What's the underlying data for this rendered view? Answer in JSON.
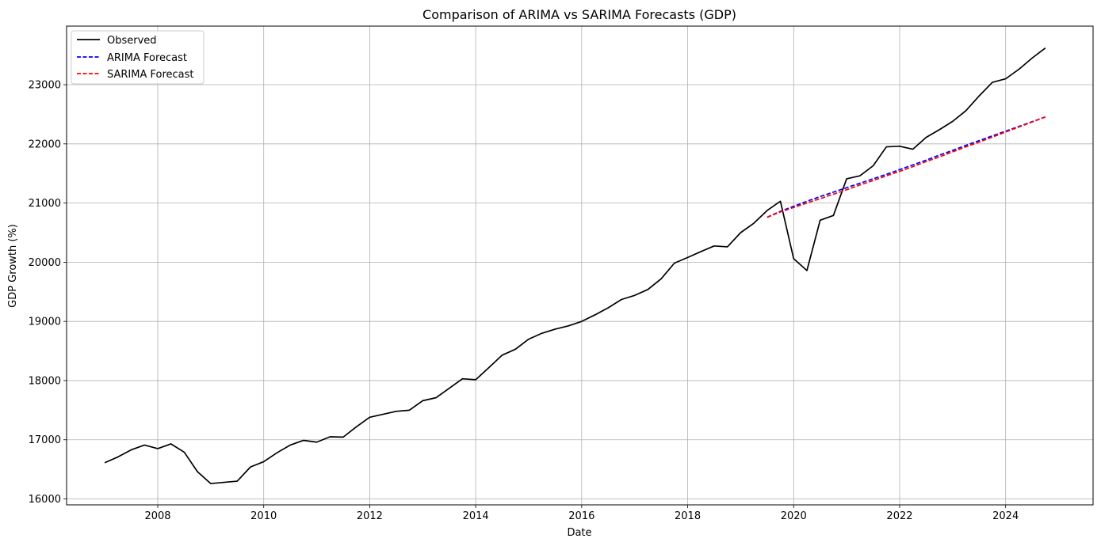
{
  "chart_data": {
    "type": "line",
    "title": "Comparison of ARIMA vs SARIMA Forecasts (GDP)",
    "xlabel": "Date",
    "ylabel": "GDP Growth (%)",
    "xlim": [
      2006.28,
      2025.65
    ],
    "ylim": [
      15900,
      23990
    ],
    "x_ticks": [
      2008,
      2010,
      2012,
      2014,
      2016,
      2018,
      2020,
      2022,
      2024
    ],
    "y_ticks": [
      16000,
      17000,
      18000,
      19000,
      20000,
      21000,
      22000,
      23000
    ],
    "grid": true,
    "legend_position": "top-left",
    "series": [
      {
        "name": "Observed",
        "color": "#000000",
        "style": "solid",
        "x": [
          2007.0,
          2007.25,
          2007.5,
          2007.75,
          2008.0,
          2008.25,
          2008.5,
          2008.75,
          2009.0,
          2009.25,
          2009.5,
          2009.75,
          2010.0,
          2010.25,
          2010.5,
          2010.75,
          2011.0,
          2011.25,
          2011.5,
          2011.75,
          2012.0,
          2012.25,
          2012.5,
          2012.75,
          2013.0,
          2013.25,
          2013.5,
          2013.75,
          2014.0,
          2014.25,
          2014.5,
          2014.75,
          2015.0,
          2015.25,
          2015.5,
          2015.75,
          2016.0,
          2016.25,
          2016.5,
          2016.75,
          2017.0,
          2017.25,
          2017.5,
          2017.75,
          2018.0,
          2018.25,
          2018.5,
          2018.75,
          2019.0,
          2019.25,
          2019.5,
          2019.75,
          2020.0,
          2020.25,
          2020.5,
          2020.75,
          2021.0,
          2021.25,
          2021.5,
          2021.75,
          2022.0,
          2022.25,
          2022.5,
          2022.75,
          2023.0,
          2023.25,
          2023.5,
          2023.75,
          2024.0,
          2024.25,
          2024.5,
          2024.75
        ],
        "y": [
          16612,
          16710,
          16830,
          16910,
          16850,
          16930,
          16790,
          16460,
          16260,
          16280,
          16300,
          16540,
          16630,
          16780,
          16910,
          16990,
          16960,
          17050,
          17045,
          17220,
          17380,
          17430,
          17480,
          17500,
          17660,
          17710,
          17870,
          18030,
          18015,
          18220,
          18430,
          18530,
          18700,
          18800,
          18870,
          18925,
          19000,
          19110,
          19230,
          19370,
          19440,
          19540,
          19720,
          19985,
          20080,
          20180,
          20275,
          20260,
          20500,
          20660,
          20875,
          21030,
          20060,
          19860,
          20710,
          20790,
          21410,
          21460,
          21630,
          21950,
          21960,
          21910,
          22110,
          22240,
          22380,
          22560,
          22810,
          23040,
          23100,
          23260,
          23450,
          23620
        ]
      },
      {
        "name": "ARIMA Forecast",
        "color": "#0000ff",
        "style": "dashed",
        "x": [
          2019.5,
          2019.75,
          2020.0,
          2020.25,
          2020.5,
          2020.75,
          2021.0,
          2021.25,
          2021.5,
          2021.75,
          2022.0,
          2022.25,
          2022.5,
          2022.75,
          2023.0,
          2023.25,
          2023.5,
          2023.75,
          2024.0,
          2024.25,
          2024.5,
          2024.75
        ],
        "y": [
          20760,
          20860,
          20945,
          21030,
          21110,
          21185,
          21260,
          21335,
          21410,
          21485,
          21565,
          21645,
          21725,
          21810,
          21890,
          21975,
          22055,
          22135,
          22215,
          22295,
          22375,
          22455
        ]
      },
      {
        "name": "SARIMA Forecast",
        "color": "#ff0000",
        "style": "dashed",
        "x": [
          2019.5,
          2019.75,
          2020.0,
          2020.25,
          2020.5,
          2020.75,
          2021.0,
          2021.25,
          2021.5,
          2021.75,
          2022.0,
          2022.25,
          2022.5,
          2022.75,
          2023.0,
          2023.25,
          2023.5,
          2023.75,
          2024.0,
          2024.25,
          2024.5,
          2024.75
        ],
        "y": [
          20760,
          20850,
          20925,
          21000,
          21075,
          21150,
          21225,
          21305,
          21380,
          21460,
          21535,
          21615,
          21700,
          21780,
          21865,
          21950,
          22030,
          22115,
          22200,
          22285,
          22370,
          22455
        ]
      }
    ]
  }
}
